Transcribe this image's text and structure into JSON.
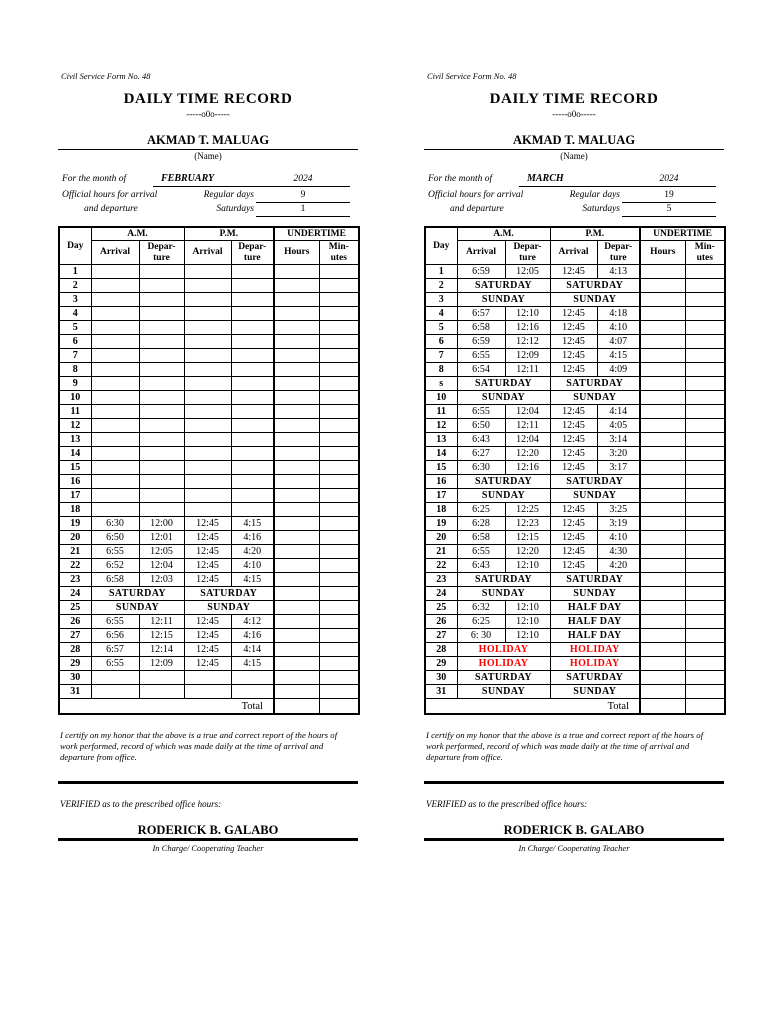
{
  "shared": {
    "form_no": "Civil Service Form No. 48",
    "title": "DAILY TIME RECORD",
    "ornament": "-----o0o-----",
    "employee_name": "AKMAD T. MALUAG",
    "name_caption": "(Name)",
    "month_label": "For the month of",
    "official_hours_label_1": "Official hours for arrival",
    "official_hours_label_2": "and departure",
    "regular_days_label": "Regular days",
    "saturdays_label": "Saturdays",
    "table": {
      "day": "Day",
      "am": "A.M.",
      "pm": "P.M.",
      "undertime": "UNDERTIME",
      "arrival": "Arrival",
      "departure": "Depar-\nture",
      "hours": "Hours",
      "minutes": "Min-\nutes",
      "total_label": "Total"
    },
    "certify_text": "I certify on my honor that the above is a true and correct report of the hours of work performed, record of which was made daily at the time of arrival and departure from office.",
    "verified_text": "VERIFIED as to the prescribed office hours:",
    "signatory_name": "RODERICK B. GALABO",
    "signatory_title": "In Charge/ Cooperating Teacher",
    "colors": {
      "ink": "#000000",
      "paper": "#ffffff",
      "holiday_red": "#ff0000"
    }
  },
  "forms": [
    {
      "month": "FEBRUARY",
      "year": "2024",
      "regular_days": "9",
      "saturdays": "1",
      "rows": [
        {
          "day": "1"
        },
        {
          "day": "2"
        },
        {
          "day": "3"
        },
        {
          "day": "4"
        },
        {
          "day": "5"
        },
        {
          "day": "6"
        },
        {
          "day": "7"
        },
        {
          "day": "8"
        },
        {
          "day": "9"
        },
        {
          "day": "10"
        },
        {
          "day": "11"
        },
        {
          "day": "12"
        },
        {
          "day": "13"
        },
        {
          "day": "14"
        },
        {
          "day": "15"
        },
        {
          "day": "16"
        },
        {
          "day": "17"
        },
        {
          "day": "18"
        },
        {
          "day": "19",
          "am_arrival": "6:30",
          "am_departure": "12:00",
          "pm_arrival": "12:45",
          "pm_departure": "4:15"
        },
        {
          "day": "20",
          "am_arrival": "6:50",
          "am_departure": "12:01",
          "pm_arrival": "12:45",
          "pm_departure": "4:16"
        },
        {
          "day": "21",
          "am_arrival": "6:55",
          "am_departure": "12:05",
          "pm_arrival": "12:45",
          "pm_departure": "4:20"
        },
        {
          "day": "22",
          "am_arrival": "6:52",
          "am_departure": "12:04",
          "pm_arrival": "12:45",
          "pm_departure": "4:10"
        },
        {
          "day": "23",
          "am_arrival": "6:58",
          "am_departure": "12:03",
          "pm_arrival": "12:45",
          "pm_departure": "4:15"
        },
        {
          "day": "24",
          "am_span": "SATURDAY",
          "pm_span": "SATURDAY"
        },
        {
          "day": "25",
          "am_span": "SUNDAY",
          "pm_span": "SUNDAY"
        },
        {
          "day": "26",
          "am_arrival": "6:55",
          "am_departure": "12:11",
          "pm_arrival": "12:45",
          "pm_departure": "4:12"
        },
        {
          "day": "27",
          "am_arrival": "6:56",
          "am_departure": "12:15",
          "pm_arrival": "12:45",
          "pm_departure": "4:16"
        },
        {
          "day": "28",
          "am_arrival": "6:57",
          "am_departure": "12:14",
          "pm_arrival": "12:45",
          "pm_departure": "4:14"
        },
        {
          "day": "29",
          "am_arrival": "6:55",
          "am_departure": "12:09",
          "pm_arrival": "12:45",
          "pm_departure": "4:15"
        },
        {
          "day": "30"
        },
        {
          "day": "31"
        }
      ]
    },
    {
      "month": "MARCH",
      "year": "2024",
      "regular_days": "19",
      "saturdays": "5",
      "rows": [
        {
          "day": "1",
          "am_arrival": "6:59",
          "am_departure": "12:05",
          "pm_arrival": "12:45",
          "pm_departure": "4:13"
        },
        {
          "day": "2",
          "am_span": "SATURDAY",
          "pm_span": "SATURDAY"
        },
        {
          "day": "3",
          "am_span": "SUNDAY",
          "pm_span": "SUNDAY"
        },
        {
          "day": "4",
          "am_arrival": "6:57",
          "am_departure": "12:10",
          "pm_arrival": "12:45",
          "pm_departure": "4:18"
        },
        {
          "day": "5",
          "am_arrival": "6:58",
          "am_departure": "12:16",
          "pm_arrival": "12:45",
          "pm_departure": "4:10"
        },
        {
          "day": "6",
          "am_arrival": "6:59",
          "am_departure": "12:12",
          "pm_arrival": "12:45",
          "pm_departure": "4:07"
        },
        {
          "day": "7",
          "am_arrival": "6:55",
          "am_departure": "12:09",
          "pm_arrival": "12:45",
          "pm_departure": "4:15"
        },
        {
          "day": "8",
          "am_arrival": "6:54",
          "am_departure": "12:11",
          "pm_arrival": "12:45",
          "pm_departure": "4:09"
        },
        {
          "day": "s",
          "am_span": "SATURDAY",
          "pm_span": "SATURDAY"
        },
        {
          "day": "10",
          "am_span": "SUNDAY",
          "pm_span": "SUNDAY"
        },
        {
          "day": "11",
          "am_arrival": "6:55",
          "am_departure": "12:04",
          "pm_arrival": "12:45",
          "pm_departure": "4:14"
        },
        {
          "day": "12",
          "am_arrival": "6:50",
          "am_departure": "12:11",
          "pm_arrival": "12:45",
          "pm_departure": "4:05"
        },
        {
          "day": "13",
          "am_arrival": "6:43",
          "am_departure": "12:04",
          "pm_arrival": "12:45",
          "pm_departure": "3:14"
        },
        {
          "day": "14",
          "am_arrival": "6:27",
          "am_departure": "12:20",
          "pm_arrival": "12:45",
          "pm_departure": "3:20"
        },
        {
          "day": "15",
          "am_arrival": "6:30",
          "am_departure": "12:16",
          "pm_arrival": "12:45",
          "pm_departure": "3:17"
        },
        {
          "day": "16",
          "am_span": "SATURDAY",
          "pm_span": "SATURDAY"
        },
        {
          "day": "17",
          "am_span": "SUNDAY",
          "pm_span": "SUNDAY"
        },
        {
          "day": "18",
          "am_arrival": "6:25",
          "am_departure": "12:25",
          "pm_arrival": "12:45",
          "pm_departure": "3:25"
        },
        {
          "day": "19",
          "am_arrival": "6:28",
          "am_departure": "12:23",
          "pm_arrival": "12:45",
          "pm_departure": "3:19"
        },
        {
          "day": "20",
          "am_arrival": "6:58",
          "am_departure": "12:15",
          "pm_arrival": "12:45",
          "pm_departure": "4:10"
        },
        {
          "day": "21",
          "am_arrival": "6:55",
          "am_departure": "12:20",
          "pm_arrival": "12:45",
          "pm_departure": "4:30"
        },
        {
          "day": "22",
          "am_arrival": "6:43",
          "am_departure": "12:10",
          "pm_arrival": "12:45",
          "pm_departure": "4:20"
        },
        {
          "day": "23",
          "am_span": "SATURDAY",
          "pm_span": "SATURDAY"
        },
        {
          "day": "24",
          "am_span": "SUNDAY",
          "pm_span": "SUNDAY"
        },
        {
          "day": "25",
          "am_arrival": "6:32",
          "am_departure": "12:10",
          "pm_span": "HALF DAY"
        },
        {
          "day": "26",
          "am_arrival": "6:25",
          "am_departure": "12:10",
          "pm_span": "HALF DAY"
        },
        {
          "day": "27",
          "am_arrival": "6: 30",
          "am_departure": "12:10",
          "pm_span": "HALF DAY"
        },
        {
          "day": "28",
          "am_span": "HOLIDAY",
          "pm_span": "HOLIDAY",
          "red": true
        },
        {
          "day": "29",
          "am_span": "HOLIDAY",
          "pm_span": "HOLIDAY",
          "red": true
        },
        {
          "day": "30",
          "am_span": "SATURDAY",
          "pm_span": "SATURDAY"
        },
        {
          "day": "31",
          "am_span": "SUNDAY",
          "pm_span": "SUNDAY"
        }
      ]
    }
  ]
}
